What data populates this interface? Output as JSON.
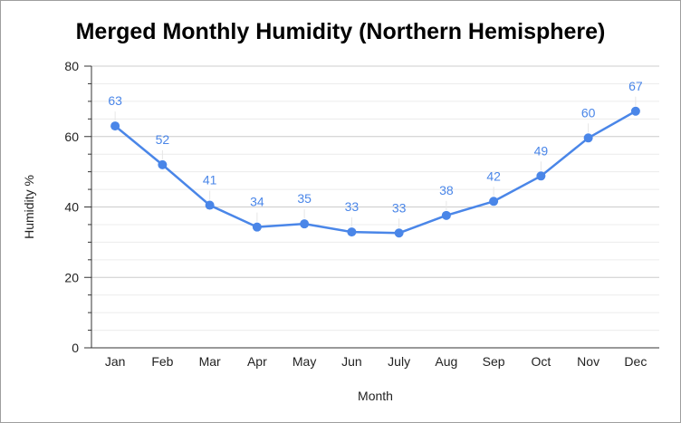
{
  "chart_data": {
    "type": "line",
    "title": "Merged Monthly Humidity (Northern Hemisphere)",
    "xlabel": "Month",
    "ylabel": "Humidity %",
    "categories": [
      "Jan",
      "Feb",
      "Mar",
      "Apr",
      "May",
      "Jun",
      "July",
      "Aug",
      "Sep",
      "Oct",
      "Nov",
      "Dec"
    ],
    "series": [
      {
        "values": [
          63,
          52,
          41,
          34,
          35,
          33,
          33,
          38,
          42,
          49,
          60,
          67
        ],
        "point_values": [
          63,
          52,
          40.5,
          34.3,
          35.2,
          32.9,
          32.6,
          37.6,
          41.6,
          48.8,
          59.6,
          67.2
        ]
      }
    ],
    "ylim": [
      0,
      80
    ],
    "yticks": [
      0,
      20,
      40,
      60,
      80
    ],
    "grid": true,
    "legend": "none",
    "colors": {
      "line": "#4a86e8",
      "data_label": "#4a86e8",
      "grid_major": "#cccccc",
      "grid_minor": "#ececec",
      "axis": "#333333"
    }
  }
}
